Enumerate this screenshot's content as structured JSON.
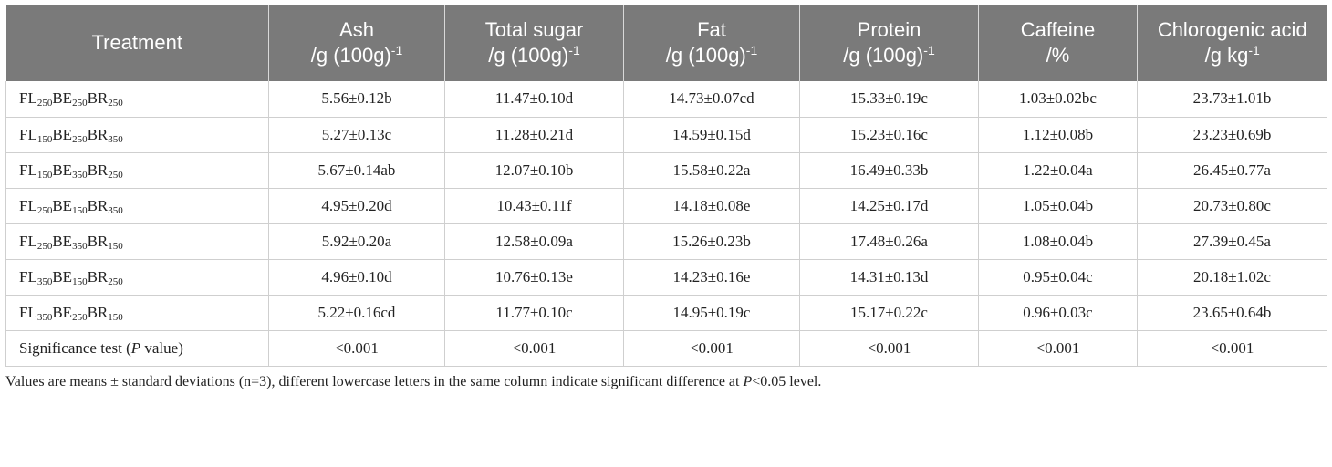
{
  "table": {
    "headers": [
      {
        "line1": "Treatment",
        "line2": "",
        "sup": ""
      },
      {
        "line1": "Ash",
        "line2": "/g (100g)",
        "sup": "-1"
      },
      {
        "line1": "Total sugar",
        "line2": "/g (100g)",
        "sup": "-1"
      },
      {
        "line1": "Fat",
        "line2": "/g (100g)",
        "sup": "-1"
      },
      {
        "line1": "Protein",
        "line2": "/g (100g)",
        "sup": "-1"
      },
      {
        "line1": "Caffeine",
        "line2": "/%",
        "sup": ""
      },
      {
        "line1": "Chlorogenic acid",
        "line2": "/g kg",
        "sup": "-1"
      }
    ],
    "rows": [
      {
        "t": {
          "a": "FL",
          "a_sub": "250",
          "b": "BE",
          "b_sub": "250",
          "c": "BR",
          "c_sub": "250"
        },
        "cells": [
          "5.56±0.12b",
          "11.47±0.10d",
          "14.73±0.07cd",
          "15.33±0.19c",
          "1.03±0.02bc",
          "23.73±1.01b"
        ]
      },
      {
        "t": {
          "a": "FL",
          "a_sub": "150",
          "b": "BE",
          "b_sub": "250",
          "c": "BR",
          "c_sub": "350"
        },
        "cells": [
          "5.27±0.13c",
          "11.28±0.21d",
          "14.59±0.15d",
          "15.23±0.16c",
          "1.12±0.08b",
          "23.23±0.69b"
        ]
      },
      {
        "t": {
          "a": "FL",
          "a_sub": "150",
          "b": "BE",
          "b_sub": "350",
          "c": "BR",
          "c_sub": "250"
        },
        "cells": [
          "5.67±0.14ab",
          "12.07±0.10b",
          "15.58±0.22a",
          "16.49±0.33b",
          "1.22±0.04a",
          "26.45±0.77a"
        ]
      },
      {
        "t": {
          "a": "FL",
          "a_sub": "250",
          "b": "BE",
          "b_sub": "150",
          "c": "BR",
          "c_sub": "350"
        },
        "cells": [
          "4.95±0.20d",
          "10.43±0.11f",
          "14.18±0.08e",
          "14.25±0.17d",
          "1.05±0.04b",
          "20.73±0.80c"
        ]
      },
      {
        "t": {
          "a": "FL",
          "a_sub": "250",
          "b": "BE",
          "b_sub": "350",
          "c": "BR",
          "c_sub": "150"
        },
        "cells": [
          "5.92±0.20a",
          "12.58±0.09a",
          "15.26±0.23b",
          "17.48±0.26a",
          "1.08±0.04b",
          "27.39±0.45a"
        ]
      },
      {
        "t": {
          "a": "FL",
          "a_sub": "350",
          "b": "BE",
          "b_sub": "150",
          "c": "BR",
          "c_sub": "250"
        },
        "cells": [
          "4.96±0.10d",
          "10.76±0.13e",
          "14.23±0.16e",
          "14.31±0.13d",
          "0.95±0.04c",
          "20.18±1.02c"
        ]
      },
      {
        "t": {
          "a": "FL",
          "a_sub": "350",
          "b": "BE",
          "b_sub": "250",
          "c": "BR",
          "c_sub": "150"
        },
        "cells": [
          "5.22±0.16cd",
          "11.77±0.10c",
          "14.95±0.19c",
          "15.17±0.22c",
          "0.96±0.03c",
          "23.65±0.64b"
        ]
      }
    ],
    "significance": {
      "label_pre": "Significance test (",
      "label_ital": "P",
      "label_post": " value)",
      "cells": [
        "<0.001",
        "<0.001",
        "<0.001",
        "<0.001",
        "<0.001",
        "<0.001"
      ]
    }
  },
  "footnote": {
    "pre": "Values are means ± standard deviations (n=3), different lowercase letters in the same column indicate significant difference at ",
    "ital": "P",
    "post": "<0.05 level."
  },
  "colors": {
    "header_bg": "#7a7a7a",
    "header_text": "#ffffff",
    "border": "#cfcfcf"
  }
}
